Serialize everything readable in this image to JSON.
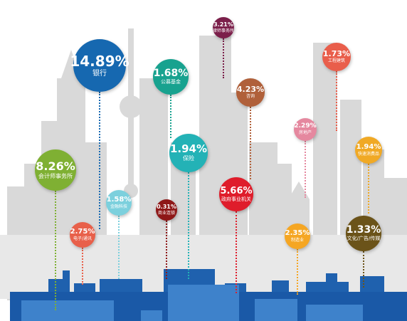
{
  "chart_data": {
    "type": "bubble",
    "series": [
      {
        "category": "银行",
        "value": 14.89,
        "display": "14.89%",
        "color": "#1668b0"
      },
      {
        "category": "会计师事务所",
        "value": 8.26,
        "display": "8.26%",
        "color": "#7fb033"
      },
      {
        "category": "律师事务所",
        "value": 3.21,
        "display": "3.21%",
        "color": "#7b1f4a"
      },
      {
        "category": "公募基金",
        "value": 1.68,
        "display": "1.68%",
        "color": "#18a28f"
      },
      {
        "category": "咨询",
        "value": 4.23,
        "display": "4.23%",
        "color": "#b0603a"
      },
      {
        "category": "工程建筑",
        "value": 1.73,
        "display": "1.73%",
        "color": "#e95e4b"
      },
      {
        "category": "房地产",
        "value": 2.29,
        "display": "2.29%",
        "color": "#e5889f"
      },
      {
        "category": "快速消费品",
        "value": 1.94,
        "display": "1.94%",
        "color": "#f0a925"
      },
      {
        "category": "保险",
        "value": 1.94,
        "display": "1.94%",
        "color": "#23b2b6"
      },
      {
        "category": "金融科技",
        "value": 1.58,
        "display": "1.58%",
        "color": "#7cd0dd"
      },
      {
        "category": "商业连锁",
        "value": 0.31,
        "display": "0.31%",
        "color": "#8e1818"
      },
      {
        "category": "政府事业机关",
        "value": 5.66,
        "display": "5.66%",
        "color": "#df1d2b"
      },
      {
        "category": "电子/通讯",
        "value": 2.75,
        "display": "2.75%",
        "color": "#e8604a"
      },
      {
        "category": "制造业",
        "value": 2.35,
        "display": "2.35%",
        "color": "#f5a623"
      },
      {
        "category": "文化/广告/传媒",
        "value": 1.33,
        "display": "1.33%",
        "color": "#6b5319"
      }
    ]
  }
}
